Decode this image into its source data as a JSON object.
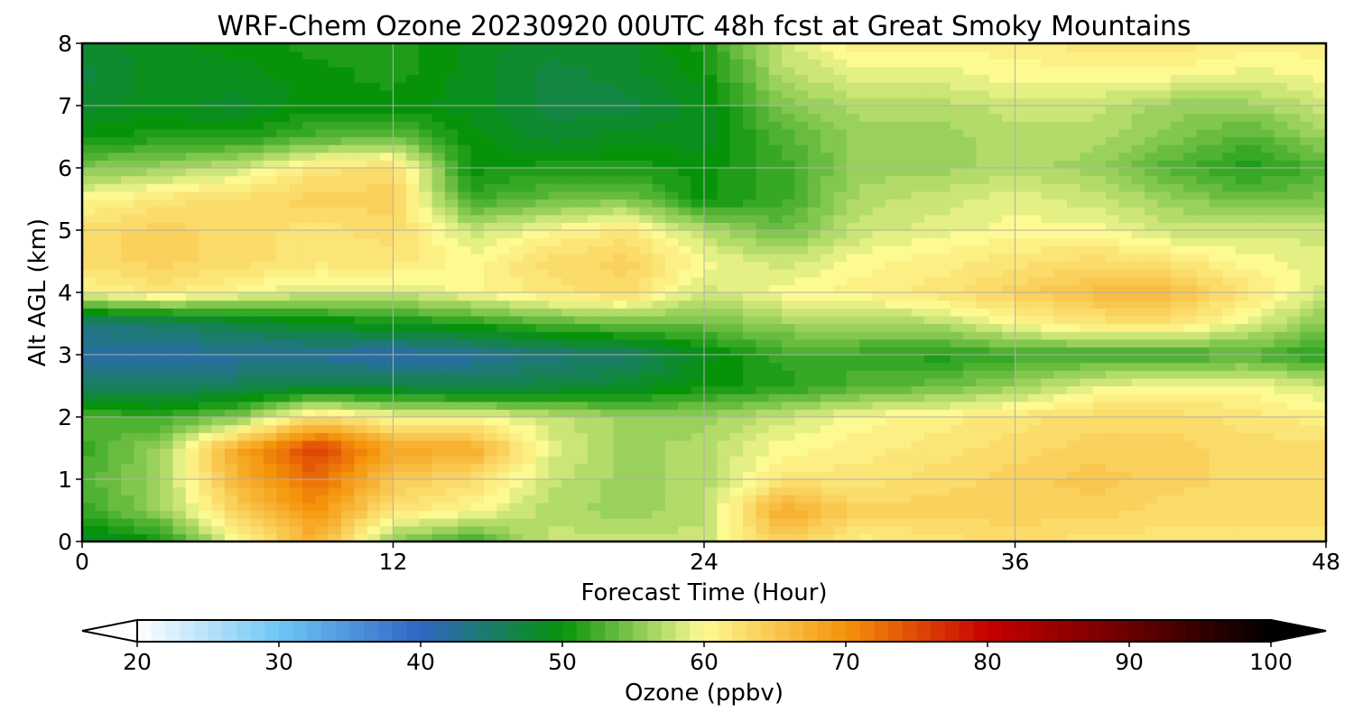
{
  "chart_data": {
    "type": "heatmap",
    "title": "WRF-Chem Ozone  20230920 00UTC 48h fcst at Great Smoky Mountains",
    "xlabel": "Forecast Time (Hour)",
    "ylabel": "Alt AGL (km)",
    "xlim": [
      0,
      48
    ],
    "ylim": [
      0,
      8
    ],
    "x_ticks": [
      "0",
      "12",
      "24",
      "36",
      "48"
    ],
    "y_ticks": [
      "0",
      "1",
      "2",
      "3",
      "4",
      "5",
      "6",
      "7",
      "8"
    ],
    "grid": true,
    "x": [
      0,
      3,
      6,
      9,
      12,
      15,
      18,
      21,
      24,
      27,
      30,
      33,
      36,
      39,
      42,
      45,
      48
    ],
    "y": [
      0,
      0.5,
      1,
      1.5,
      2,
      2.5,
      3,
      3.5,
      4,
      4.5,
      5,
      5.5,
      6,
      6.5,
      7,
      7.5,
      8
    ],
    "z_rows_from_altitude_0": [
      [
        48,
        50,
        60,
        67,
        55,
        52,
        58,
        58,
        58,
        64,
        61,
        62,
        63,
        62,
        62,
        62,
        62
      ],
      [
        52,
        56,
        64,
        70,
        62,
        60,
        57,
        56,
        57,
        68,
        64,
        64,
        64,
        64,
        63,
        63,
        63
      ],
      [
        53,
        56,
        67,
        73,
        65,
        63,
        58,
        56,
        57,
        62,
        62,
        63,
        64,
        65,
        64,
        63,
        63
      ],
      [
        52,
        56,
        68,
        76,
        68,
        68,
        59,
        56,
        57,
        60,
        61,
        62,
        63,
        64,
        64,
        63,
        63
      ],
      [
        53,
        52,
        55,
        63,
        60,
        60,
        58,
        56,
        56,
        58,
        60,
        61,
        62,
        63,
        63,
        62,
        61
      ],
      [
        45,
        45,
        46,
        47,
        47,
        46,
        47,
        48,
        50,
        51,
        53,
        54,
        56,
        59,
        60,
        60,
        58
      ],
      [
        42,
        42,
        42,
        42,
        41,
        42,
        44,
        45,
        49,
        52,
        52,
        51,
        52,
        52,
        52,
        53,
        51
      ],
      [
        44,
        45,
        47,
        49,
        50,
        51,
        53,
        54,
        54,
        56,
        56,
        57,
        60,
        62,
        62,
        59,
        55
      ],
      [
        60,
        62,
        60,
        58,
        58,
        60,
        62,
        63,
        58,
        60,
        61,
        62,
        64,
        66,
        66,
        62,
        58
      ],
      [
        63,
        64,
        63,
        62,
        62,
        60,
        63,
        64,
        60,
        58,
        60,
        61,
        62,
        63,
        62,
        60,
        59
      ],
      [
        63,
        64,
        63,
        62,
        63,
        58,
        60,
        62,
        57,
        54,
        58,
        59,
        60,
        60,
        58,
        58,
        58
      ],
      [
        60,
        62,
        63,
        64,
        64,
        52,
        54,
        55,
        50,
        52,
        57,
        58,
        59,
        58,
        56,
        54,
        55
      ],
      [
        55,
        56,
        58,
        62,
        63,
        50,
        51,
        51,
        50,
        52,
        56,
        56,
        57,
        56,
        53,
        51,
        53
      ],
      [
        50,
        51,
        51,
        53,
        54,
        50,
        48,
        49,
        49,
        53,
        56,
        56,
        57,
        57,
        55,
        53,
        56
      ],
      [
        48,
        49,
        48,
        50,
        50,
        49,
        47,
        47,
        49,
        55,
        57,
        57,
        58,
        58,
        56,
        56,
        58
      ],
      [
        47,
        49,
        49,
        50,
        51,
        49,
        47,
        48,
        50,
        57,
        59,
        59,
        60,
        60,
        60,
        59,
        60
      ],
      [
        48,
        49,
        50,
        51,
        51,
        49,
        48,
        48,
        51,
        58,
        61,
        61,
        61,
        62,
        62,
        61,
        61
      ]
    ],
    "colorbar": {
      "label": "Ozone  (ppbv)",
      "min": 20,
      "max": 100,
      "ticks": [
        "20",
        "30",
        "40",
        "50",
        "60",
        "70",
        "80",
        "90",
        "100"
      ],
      "extend": "both",
      "colormap": [
        [
          20,
          "#ffffff"
        ],
        [
          30,
          "#6ec6f3"
        ],
        [
          40,
          "#2f66c4"
        ],
        [
          50,
          "#06930a"
        ],
        [
          60,
          "#fdfa92"
        ],
        [
          70,
          "#f5930a"
        ],
        [
          80,
          "#c70000"
        ],
        [
          90,
          "#6a0000"
        ],
        [
          100,
          "#000000"
        ]
      ]
    }
  }
}
